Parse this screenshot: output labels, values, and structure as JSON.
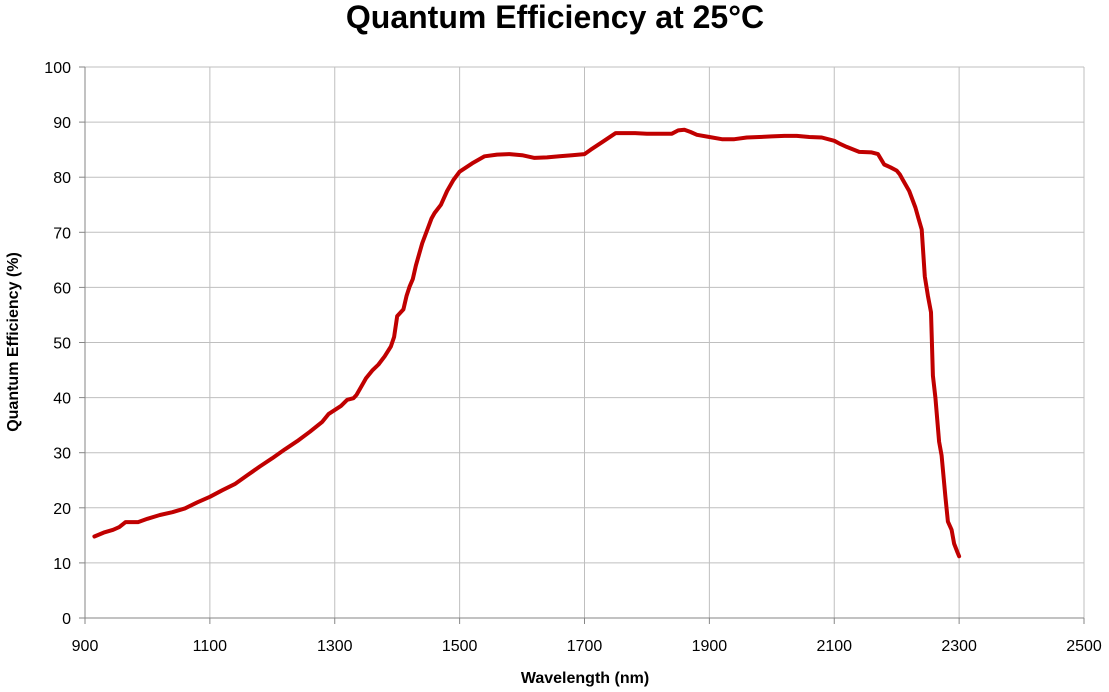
{
  "chart_data": {
    "type": "line",
    "title": "Quantum Efficiency at 25°C",
    "xlabel": "Wavelength (nm)",
    "ylabel": "Quantum Efficiency (%)",
    "xlim": [
      900,
      2500
    ],
    "ylim": [
      0,
      100
    ],
    "xticks": [
      900,
      1100,
      1300,
      1500,
      1700,
      1900,
      2100,
      2300,
      2500
    ],
    "yticks": [
      0,
      10,
      20,
      30,
      40,
      50,
      60,
      70,
      80,
      90,
      100
    ],
    "grid": true,
    "legend": "none",
    "series": [
      {
        "name": "Quantum Efficiency",
        "color": "#C00000",
        "x": [
          915,
          930,
          945,
          955,
          965,
          985,
          1000,
          1020,
          1040,
          1060,
          1080,
          1100,
          1120,
          1140,
          1160,
          1180,
          1200,
          1220,
          1240,
          1260,
          1280,
          1290,
          1310,
          1320,
          1330,
          1335,
          1350,
          1360,
          1370,
          1380,
          1390,
          1395,
          1400,
          1410,
          1415,
          1420,
          1425,
          1430,
          1440,
          1450,
          1455,
          1460,
          1470,
          1480,
          1490,
          1500,
          1520,
          1540,
          1560,
          1580,
          1600,
          1620,
          1640,
          1660,
          1680,
          1700,
          1710,
          1730,
          1750,
          1780,
          1800,
          1820,
          1840,
          1850,
          1860,
          1870,
          1880,
          1900,
          1920,
          1940,
          1960,
          1980,
          2000,
          2020,
          2040,
          2060,
          2080,
          2100,
          2110,
          2120,
          2140,
          2160,
          2170,
          2180,
          2190,
          2200,
          2205,
          2210,
          2220,
          2230,
          2235,
          2240,
          2245,
          2250,
          2255,
          2258,
          2262,
          2268,
          2272,
          2278,
          2282,
          2288,
          2292,
          2297,
          2300
        ],
        "y": [
          14.8,
          15.5,
          16.0,
          16.5,
          17.4,
          17.4,
          18.0,
          18.7,
          19.2,
          19.9,
          21.0,
          22.0,
          23.2,
          24.3,
          25.9,
          27.5,
          29.0,
          30.6,
          32.1,
          33.8,
          35.6,
          37.0,
          38.5,
          39.6,
          39.9,
          40.5,
          43.5,
          44.9,
          46.0,
          47.5,
          49.3,
          51.0,
          54.8,
          56.0,
          58.5,
          60.2,
          61.5,
          64.0,
          68.0,
          71.0,
          72.5,
          73.5,
          75.0,
          77.5,
          79.5,
          81.0,
          82.5,
          83.8,
          84.1,
          84.2,
          84.0,
          83.5,
          83.6,
          83.8,
          84.0,
          84.2,
          85.0,
          86.5,
          88.0,
          88.0,
          87.9,
          87.9,
          87.9,
          88.5,
          88.6,
          88.2,
          87.7,
          87.3,
          86.9,
          86.9,
          87.2,
          87.3,
          87.4,
          87.5,
          87.5,
          87.3,
          87.2,
          86.6,
          86.0,
          85.5,
          84.6,
          84.5,
          84.2,
          82.3,
          81.8,
          81.2,
          80.5,
          79.5,
          77.5,
          74.5,
          72.5,
          70.5,
          62.0,
          58.5,
          55.5,
          44.0,
          40.0,
          32.0,
          29.5,
          22.0,
          17.5,
          16.0,
          13.5,
          12.0,
          11.2
        ]
      }
    ]
  }
}
